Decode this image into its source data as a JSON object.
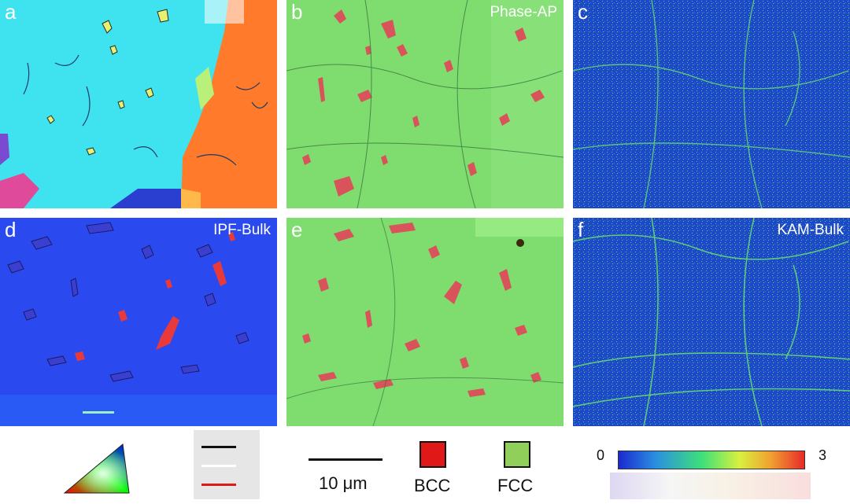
{
  "panels": [
    {
      "letter": "a",
      "title": "",
      "kind": "ipf-ap"
    },
    {
      "letter": "b",
      "title": "Phase-AP",
      "kind": "phase"
    },
    {
      "letter": "c",
      "title": "",
      "kind": "kam"
    },
    {
      "letter": "d",
      "title": "IPF-Bulk",
      "kind": "ipf-bulk"
    },
    {
      "letter": "e",
      "title": "",
      "kind": "phase"
    },
    {
      "letter": "f",
      "title": "KAM-Bulk",
      "kind": "kam"
    }
  ],
  "legend": {
    "scale_bar_label": "10 μm",
    "phases": [
      {
        "label": "BCC",
        "color": "#e01818"
      },
      {
        "label": "FCC",
        "color": "#8fcf5a"
      }
    ],
    "kam_min": "0",
    "kam_max": "3"
  },
  "colors": {
    "fcc_green": "#7fdc6f",
    "bcc_red": "#d9535a",
    "ipf_cyan": "#3fe3f0",
    "ipf_blue": "#2a3ff0",
    "kam_blue": "#1c3fcf",
    "orange": "#ff7a2a"
  }
}
